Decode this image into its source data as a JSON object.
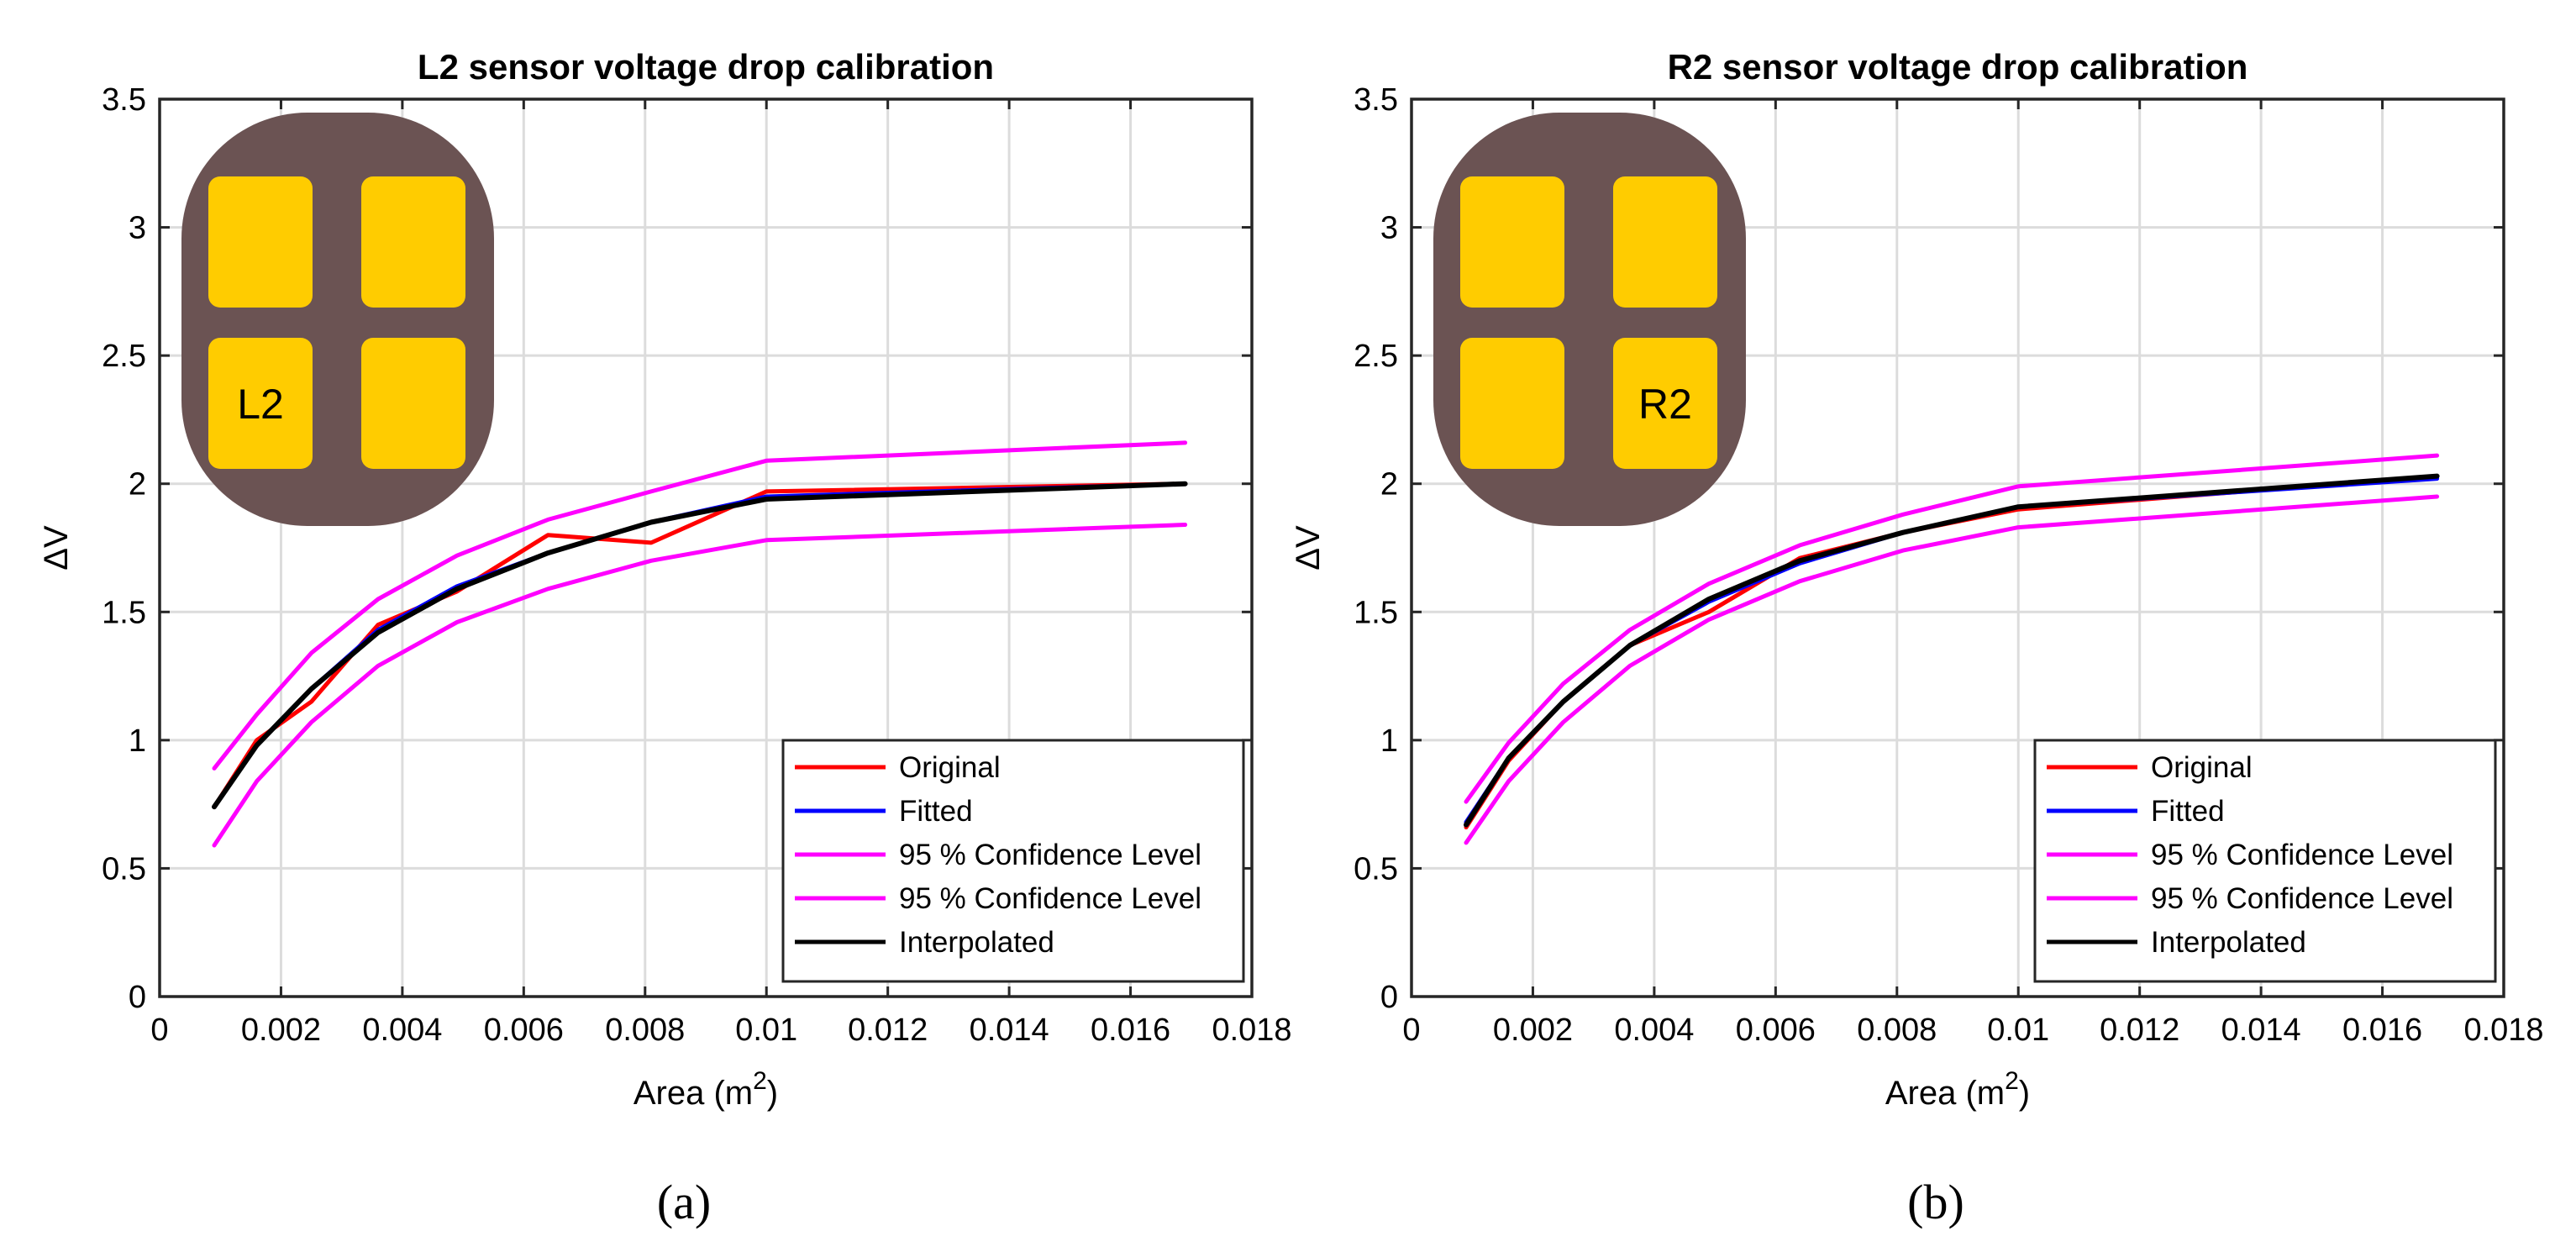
{
  "chart_data": [
    {
      "type": "line",
      "panel_label": "(a)",
      "title": "L2 sensor voltage drop calibration",
      "xlabel": "Area (m",
      "xlabel_sup": "2",
      "xlabel_end": ")",
      "ylabel": "ΔV",
      "xlim": [
        0,
        0.018
      ],
      "ylim": [
        0,
        3.5
      ],
      "xticks": [
        "0",
        "0.002",
        "0.004",
        "0.006",
        "0.008",
        "0.01",
        "0.012",
        "0.014",
        "0.016",
        "0.018"
      ],
      "yticks": [
        "0",
        "0.5",
        "1",
        "1.5",
        "2",
        "2.5",
        "3",
        "3.5"
      ],
      "grid": true,
      "legend_position": "bottom-right",
      "inset": {
        "label": "L2",
        "highlight_cell": "bottom-left"
      },
      "series": [
        {
          "name": "Original",
          "color": "#ff0000",
          "x": [
            0.0009,
            0.0016,
            0.0025,
            0.0036,
            0.0049,
            0.0064,
            0.0081,
            0.01,
            0.0169
          ],
          "y": [
            0.74,
            1.0,
            1.15,
            1.45,
            1.58,
            1.8,
            1.77,
            1.97,
            2.0
          ]
        },
        {
          "name": "Fitted",
          "color": "#0000ff",
          "x": [
            0.0009,
            0.0016,
            0.0025,
            0.0036,
            0.0049,
            0.0064,
            0.0081,
            0.01,
            0.0169
          ],
          "y": [
            0.74,
            0.98,
            1.2,
            1.43,
            1.6,
            1.73,
            1.85,
            1.95,
            2.0
          ]
        },
        {
          "name": "95 % Confidence Level",
          "color": "#ff00ff",
          "x": [
            0.0009,
            0.0016,
            0.0025,
            0.0036,
            0.0049,
            0.0064,
            0.0081,
            0.01,
            0.0169
          ],
          "y": [
            0.89,
            1.1,
            1.34,
            1.55,
            1.72,
            1.86,
            1.97,
            2.09,
            2.16
          ]
        },
        {
          "name": "95 % Confidence Level",
          "color": "#ff00ff",
          "x": [
            0.0009,
            0.0016,
            0.0025,
            0.0036,
            0.0049,
            0.0064,
            0.0081,
            0.01,
            0.0169
          ],
          "y": [
            0.59,
            0.84,
            1.07,
            1.29,
            1.46,
            1.59,
            1.7,
            1.78,
            1.84
          ]
        },
        {
          "name": "Interpolated",
          "color": "#000000",
          "x": [
            0.0009,
            0.0016,
            0.0025,
            0.0036,
            0.0049,
            0.0064,
            0.0081,
            0.01,
            0.0169
          ],
          "y": [
            0.74,
            0.98,
            1.2,
            1.42,
            1.59,
            1.73,
            1.85,
            1.94,
            2.0
          ]
        }
      ]
    },
    {
      "type": "line",
      "panel_label": "(b)",
      "title": "R2 sensor voltage drop calibration",
      "xlabel": "Area (m",
      "xlabel_sup": "2",
      "xlabel_end": ")",
      "ylabel": "ΔV",
      "xlim": [
        0,
        0.018
      ],
      "ylim": [
        0,
        3.5
      ],
      "xticks": [
        "0",
        "0.002",
        "0.004",
        "0.006",
        "0.008",
        "0.01",
        "0.012",
        "0.014",
        "0.016",
        "0.018"
      ],
      "yticks": [
        "0",
        "0.5",
        "1",
        "1.5",
        "2",
        "2.5",
        "3",
        "3.5"
      ],
      "grid": true,
      "legend_position": "bottom-right",
      "inset": {
        "label": "R2",
        "highlight_cell": "bottom-right"
      },
      "series": [
        {
          "name": "Original",
          "color": "#ff0000",
          "x": [
            0.0009,
            0.0016,
            0.0025,
            0.0036,
            0.0049,
            0.0064,
            0.0081,
            0.01,
            0.0169
          ],
          "y": [
            0.66,
            0.92,
            1.15,
            1.37,
            1.5,
            1.71,
            1.81,
            1.9,
            2.03
          ]
        },
        {
          "name": "Fitted",
          "color": "#0000ff",
          "x": [
            0.0009,
            0.0016,
            0.0025,
            0.0036,
            0.0049,
            0.0064,
            0.0081,
            0.01,
            0.0169
          ],
          "y": [
            0.68,
            0.93,
            1.15,
            1.37,
            1.54,
            1.69,
            1.81,
            1.91,
            2.02
          ]
        },
        {
          "name": "95 % Confidence Level",
          "color": "#ff00ff",
          "x": [
            0.0009,
            0.0016,
            0.0025,
            0.0036,
            0.0049,
            0.0064,
            0.0081,
            0.01,
            0.0169
          ],
          "y": [
            0.76,
            0.99,
            1.22,
            1.43,
            1.61,
            1.76,
            1.88,
            1.99,
            2.11
          ]
        },
        {
          "name": "95 % Confidence Level",
          "color": "#ff00ff",
          "x": [
            0.0009,
            0.0016,
            0.0025,
            0.0036,
            0.0049,
            0.0064,
            0.0081,
            0.01,
            0.0169
          ],
          "y": [
            0.6,
            0.84,
            1.07,
            1.29,
            1.47,
            1.62,
            1.74,
            1.83,
            1.95
          ]
        },
        {
          "name": "Interpolated",
          "color": "#000000",
          "x": [
            0.0009,
            0.0016,
            0.0025,
            0.0036,
            0.0049,
            0.0064,
            0.0081,
            0.01,
            0.0169
          ],
          "y": [
            0.67,
            0.93,
            1.15,
            1.37,
            1.55,
            1.7,
            1.81,
            1.91,
            2.03
          ]
        }
      ]
    }
  ]
}
